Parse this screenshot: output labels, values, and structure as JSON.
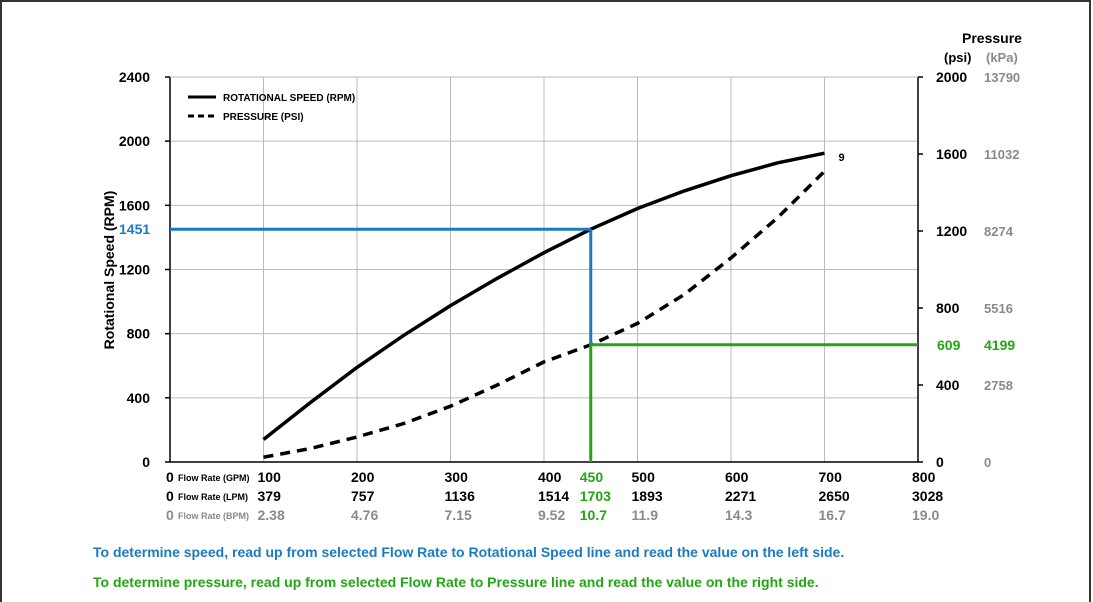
{
  "colors": {
    "speed_marker": "#1a7bbf",
    "pressure_marker": "#22a613",
    "axis": "#000000",
    "grid": "#bbbbbb",
    "muted": "#8a8a8a"
  },
  "notes": {
    "speed": "To determine speed, read up from selected Flow Rate to Rotational Speed line and read the value on the left side.",
    "pressure": "To determine pressure, read up from selected Flow Rate to Pressure line and read the value on the right side."
  },
  "chart_data": {
    "type": "line",
    "title": "",
    "ylabel": "Rotational Speed (RPM)",
    "y2label": "Pressure",
    "y2_units": [
      "(psi)",
      "(kPa)"
    ],
    "xlim": [
      0,
      800
    ],
    "ylim": [
      0,
      2400
    ],
    "y2lim": [
      0,
      2000
    ],
    "grid": true,
    "legend_position": "top-left",
    "legend": [
      {
        "label": "ROTATIONAL SPEED (RPM)",
        "style": "solid"
      },
      {
        "label": "PRESSURE (PSI)",
        "style": "dashed"
      }
    ],
    "y_ticks": [
      "0",
      "400",
      "800",
      "1200",
      "1600",
      "2000",
      "2400"
    ],
    "y2_ticks": [
      {
        "psi": "0",
        "kpa": "0"
      },
      {
        "psi": "400",
        "kpa": "2758"
      },
      {
        "psi": "800",
        "kpa": "5516"
      },
      {
        "psi": "1200",
        "kpa": "8274"
      },
      {
        "psi": "1600",
        "kpa": "11032"
      },
      {
        "psi": "2000",
        "kpa": "13790"
      }
    ],
    "x_rows": [
      {
        "label": "Flow Rate (GPM)",
        "values": [
          "0",
          "100",
          "200",
          "300",
          "400",
          "500",
          "600",
          "700",
          "800"
        ]
      },
      {
        "label": "Flow Rate (LPM)",
        "values": [
          "0",
          "379",
          "757",
          "1136",
          "1514",
          "1893",
          "2271",
          "2650",
          "3028"
        ]
      },
      {
        "label": "Flow Rate (BPM)",
        "values": [
          "0",
          "2.38",
          "4.76",
          "7.15",
          "9.52",
          "11.9",
          "14.3",
          "16.7",
          "19.0"
        ]
      }
    ],
    "series": [
      {
        "name": "ROTATIONAL SPEED (RPM)",
        "axis": "left",
        "x": [
          100,
          150,
          200,
          250,
          300,
          350,
          400,
          450,
          500,
          550,
          600,
          650,
          700
        ],
        "y": [
          140,
          370,
          590,
          790,
          975,
          1145,
          1305,
          1451,
          1580,
          1690,
          1785,
          1865,
          1925
        ],
        "end_label": "9"
      },
      {
        "name": "PRESSURE (PSI)",
        "axis": "right",
        "x": [
          100,
          150,
          200,
          250,
          300,
          350,
          400,
          450,
          500,
          550,
          600,
          650,
          700
        ],
        "y": [
          25,
          70,
          130,
          200,
          290,
          400,
          520,
          609,
          720,
          870,
          1060,
          1270,
          1510
        ]
      }
    ],
    "annotations": {
      "selected_flow": {
        "gpm": "450",
        "lpm": "1703",
        "bpm": "10.7"
      },
      "speed_readout": "1451",
      "pressure_readout": {
        "psi": "609",
        "kpa": "4199"
      }
    }
  }
}
